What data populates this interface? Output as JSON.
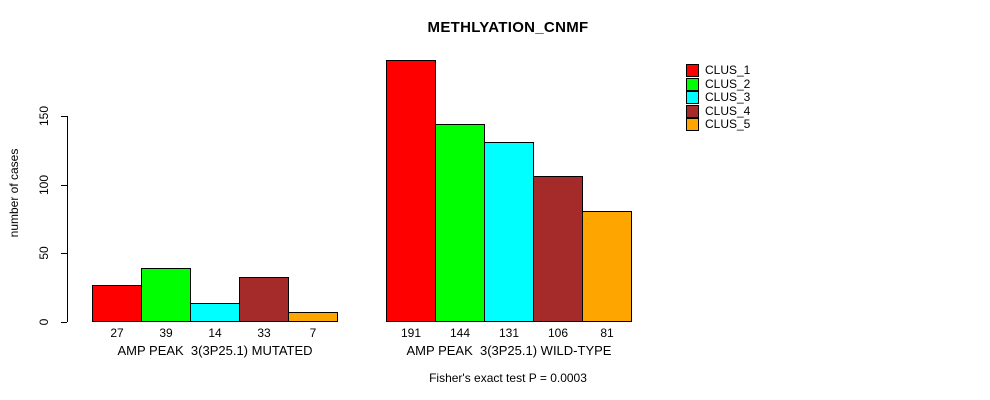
{
  "title": "METHLYATION_CNMF",
  "y_axis": {
    "label": "number of cases",
    "ticks": [
      "0",
      "50",
      "100",
      "150"
    ]
  },
  "footer": "Fisher's exact test P = 0.0003",
  "legend": {
    "position": "top-right",
    "items": [
      {
        "label": "CLUS_1",
        "color": "#FF0000"
      },
      {
        "label": "CLUS_2",
        "color": "#00FF00"
      },
      {
        "label": "CLUS_3",
        "color": "#00FFFF"
      },
      {
        "label": "CLUS_4",
        "color": "#A52A2A"
      },
      {
        "label": "CLUS_5",
        "color": "#FFA500"
      }
    ]
  },
  "chart_data": {
    "type": "bar",
    "title": "METHLYATION_CNMF",
    "xlabel": "",
    "ylabel": "number of cases",
    "ylim": [
      0,
      150
    ],
    "y_ticks": [
      0,
      50,
      100,
      150
    ],
    "grid": false,
    "legend_position": "top-right",
    "series_names": [
      "CLUS_1",
      "CLUS_2",
      "CLUS_3",
      "CLUS_4",
      "CLUS_5"
    ],
    "series_colors": [
      "#FF0000",
      "#00FF00",
      "#00FFFF",
      "#A52A2A",
      "#FFA500"
    ],
    "bar_value_labels_shown": true,
    "groups": [
      {
        "key": "mutated",
        "label": "AMP PEAK  3(3P25.1) MUTATED",
        "values": [
          27,
          39,
          14,
          33,
          7
        ]
      },
      {
        "key": "wild-type",
        "label": "AMP PEAK  3(3P25.1) WILD-TYPE",
        "values": [
          191,
          144,
          131,
          106,
          81
        ]
      }
    ],
    "annotation": "Fisher's exact test P = 0.0003"
  }
}
